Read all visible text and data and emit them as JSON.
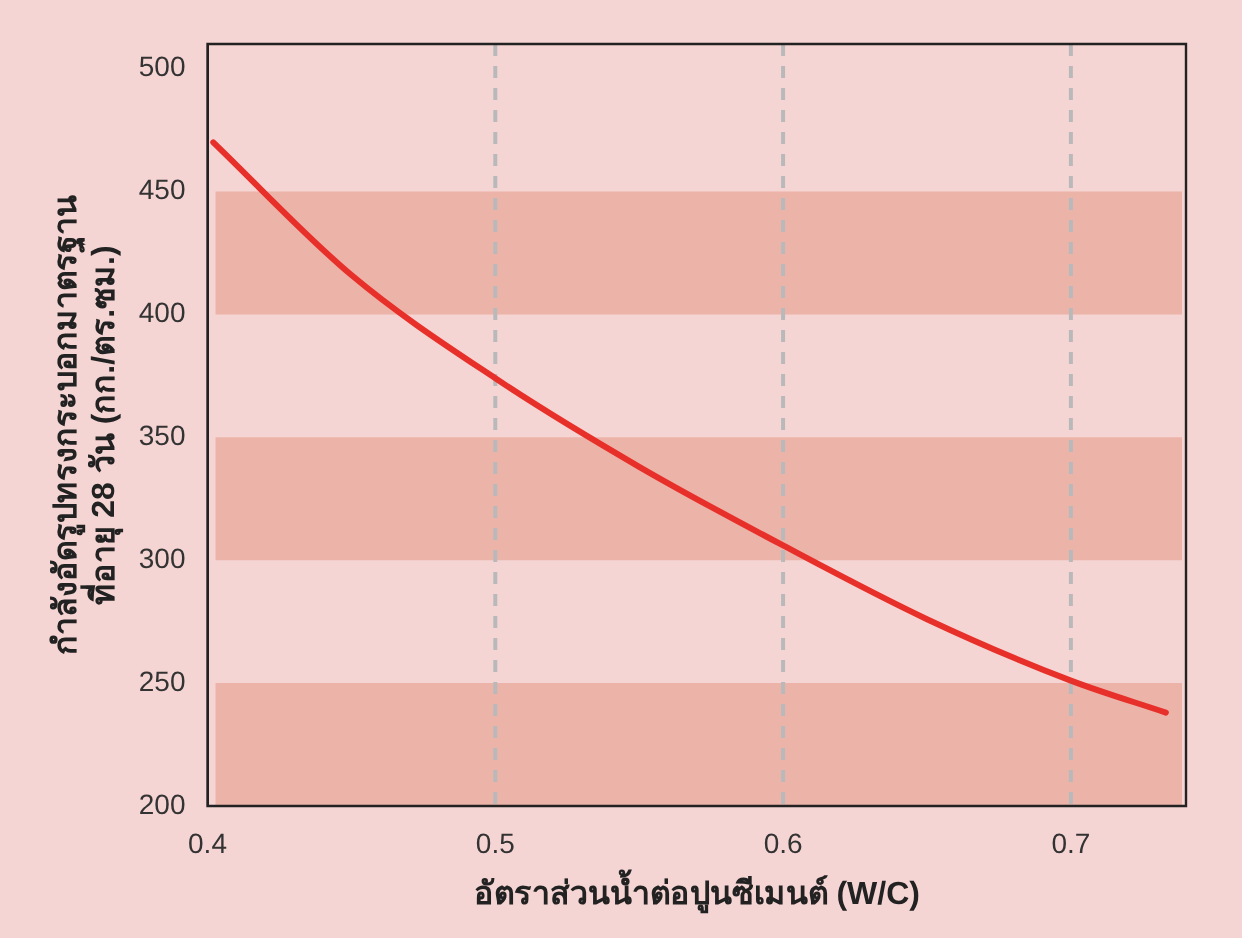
{
  "chart_data": {
    "type": "line",
    "xlabel": "อัตราส่วนน้ำต่อปูนซีเมนต์ (W/C)",
    "ylabel": "กำลังอัดรูปทรงกระบอกมาตรฐาน\nที่อายุ 28 วัน (กก./ตร.ซม.)",
    "x": [
      0.402,
      0.45,
      0.5,
      0.55,
      0.6,
      0.65,
      0.7,
      0.733
    ],
    "series": [
      {
        "color": "#e8302a",
        "values": [
          470,
          416,
          374,
          338,
          306,
          276,
          251,
          238
        ]
      }
    ],
    "xlim": [
      0.4,
      0.74
    ],
    "xticks": [
      0.4,
      0.5,
      0.6,
      0.7
    ],
    "ylim": [
      200,
      510
    ],
    "yticks": [
      200,
      250,
      300,
      350,
      400,
      450,
      500
    ],
    "grid": "x",
    "marker": "none",
    "line_style": "solid",
    "legend": false,
    "bands": [
      {
        "axis": "y",
        "from": 200,
        "to": 250,
        "color": "#ecb3a8"
      },
      {
        "axis": "y",
        "from": 300,
        "to": 350,
        "color": "#ecb3a8"
      },
      {
        "axis": "y",
        "from": 400,
        "to": 450,
        "color": "#ecb3a8"
      }
    ]
  }
}
